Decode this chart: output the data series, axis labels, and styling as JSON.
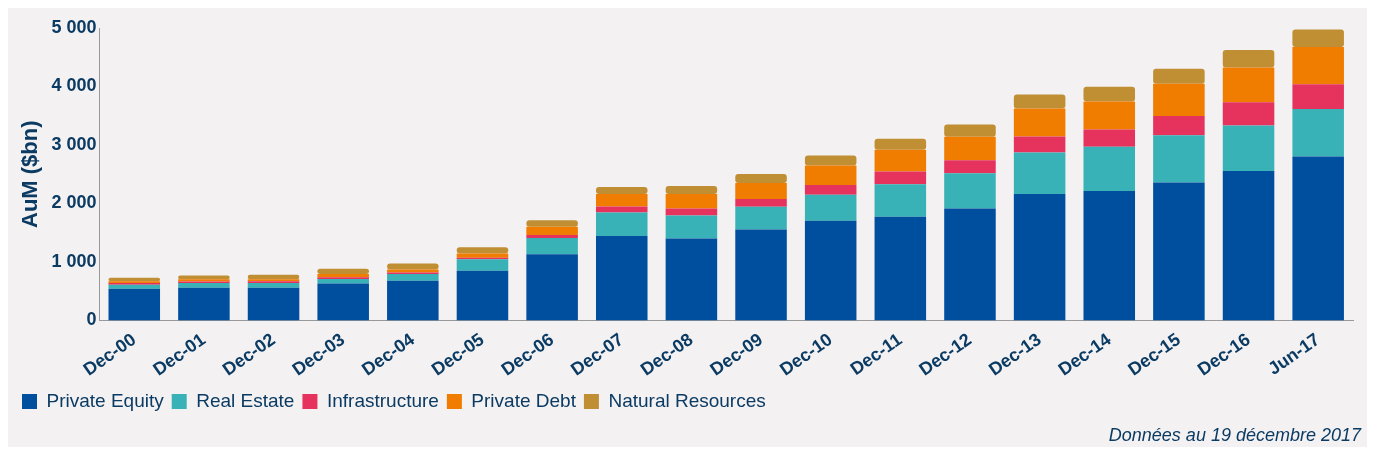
{
  "chart_data": {
    "type": "bar",
    "stacked": true,
    "ylabel": "AuM ($bn)",
    "categories": [
      "Dec-00",
      "Dec-01",
      "Dec-02",
      "Dec-03",
      "Dec-04",
      "Dec-05",
      "Dec-06",
      "Dec-07",
      "Dec-08",
      "Dec-09",
      "Dec-10",
      "Dec-11",
      "Dec-12",
      "Dec-13",
      "Dec-14",
      "Dec-15",
      "Dec-16",
      "Jun-17"
    ],
    "series": [
      {
        "name": "Private Equity",
        "color": "#004f9f",
        "values": [
          540,
          560,
          560,
          630,
          680,
          850,
          1130,
          1445,
          1400,
          1555,
          1705,
          1775,
          1915,
          2160,
          2215,
          2360,
          2555,
          2805
        ]
      },
      {
        "name": "Real Estate",
        "color": "#38b2b6",
        "values": [
          70,
          80,
          80,
          80,
          115,
          195,
          280,
          400,
          395,
          390,
          445,
          555,
          600,
          710,
          755,
          805,
          780,
          810
        ]
      },
      {
        "name": "Infrastructure",
        "color": "#e5335e",
        "values": [
          30,
          25,
          30,
          30,
          25,
          25,
          50,
          105,
          120,
          130,
          165,
          215,
          225,
          275,
          295,
          330,
          395,
          425
        ]
      },
      {
        "name": "Private Debt",
        "color": "#f07c00",
        "values": [
          30,
          40,
          35,
          55,
          50,
          75,
          140,
          210,
          245,
          275,
          335,
          375,
          400,
          480,
          480,
          550,
          595,
          635
        ]
      },
      {
        "name": "Natural Resources",
        "color": "#c08f34",
        "values": [
          60,
          65,
          75,
          90,
          105,
          105,
          115,
          120,
          140,
          155,
          170,
          185,
          210,
          240,
          250,
          260,
          300,
          300
        ]
      }
    ],
    "ylim": [
      0,
      5000
    ],
    "yticks": [
      {
        "value": 0,
        "label": "0"
      },
      {
        "value": 1000,
        "label": "1 000"
      },
      {
        "value": 2000,
        "label": "2 000"
      },
      {
        "value": 3000,
        "label": "3 000"
      },
      {
        "value": 4000,
        "label": "4 000"
      },
      {
        "value": 5000,
        "label": "5 000"
      }
    ],
    "grid": false,
    "legend": "bottom left",
    "annotations": [
      "Données au 19 décembre 2017"
    ]
  }
}
